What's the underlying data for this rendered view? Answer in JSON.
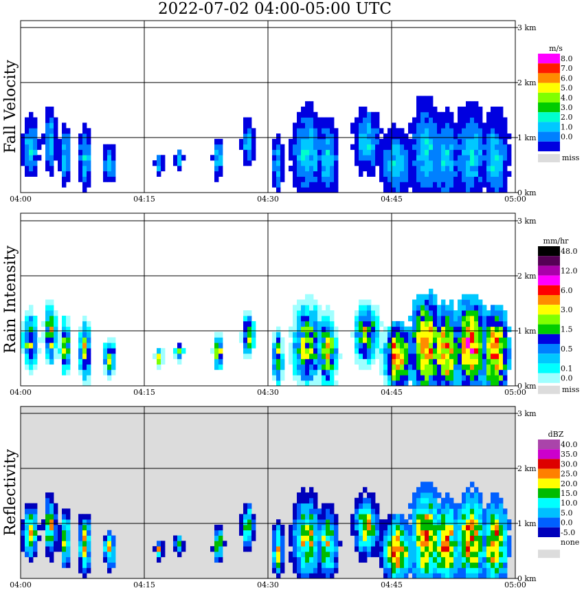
{
  "title": "2022-07-02   04:00-05:00 UTC",
  "time_ticks": [
    "04:00",
    "04:15",
    "04:30",
    "04:45",
    "05:00"
  ],
  "height_ticks": [
    "0 km",
    "1 km",
    "2 km",
    "3 km"
  ],
  "colors": {
    "miss": "#dcdcdc",
    "grid": "#000000"
  },
  "chart_data": [
    {
      "type": "heatmap",
      "title": "",
      "ylabel": "Fall Velocity",
      "xlabel": "",
      "x": [
        "04:00",
        "04:15",
        "04:30",
        "04:45",
        "05:00"
      ],
      "ylim_km": [
        0,
        3.0
      ],
      "unit": "m/s",
      "colorbar": [
        {
          "label": "8.0",
          "color": "#ff00ff"
        },
        {
          "label": "7.0",
          "color": "#ff1a00"
        },
        {
          "label": "6.0",
          "color": "#ff8c00"
        },
        {
          "label": "5.0",
          "color": "#ffff00"
        },
        {
          "label": "4.0",
          "color": "#80ff00"
        },
        {
          "label": "3.0",
          "color": "#00cc00"
        },
        {
          "label": "2.0",
          "color": "#00ffcc"
        },
        {
          "label": "1.0",
          "color": "#00c8ff"
        },
        {
          "label": "0.0",
          "color": "#0080ff"
        },
        {
          "label": "",
          "color": "#0000e0"
        }
      ],
      "miss_label": "miss",
      "background": "#ffffff"
    },
    {
      "type": "heatmap",
      "title": "",
      "ylabel": "Rain Intensity",
      "xlabel": "",
      "x": [
        "04:00",
        "04:15",
        "04:30",
        "04:45",
        "05:00"
      ],
      "ylim_km": [
        0,
        3.0
      ],
      "unit": "mm/hr",
      "colorbar": [
        {
          "label": "48.0",
          "color": "#000000"
        },
        {
          "label": "",
          "color": "#550055"
        },
        {
          "label": "12.0",
          "color": "#aa00aa"
        },
        {
          "label": "",
          "color": "#ff00ff"
        },
        {
          "label": "6.0",
          "color": "#ff0000"
        },
        {
          "label": "",
          "color": "#ff8c00"
        },
        {
          "label": "3.0",
          "color": "#ffff00"
        },
        {
          "label": "",
          "color": "#80ff00"
        },
        {
          "label": "1.5",
          "color": "#00cc00"
        },
        {
          "label": "",
          "color": "#0000e0"
        },
        {
          "label": "0.5",
          "color": "#0080ff"
        },
        {
          "label": "",
          "color": "#00c8ff"
        },
        {
          "label": "0.1",
          "color": "#00ffff"
        },
        {
          "label": "0.0",
          "color": "#a0ffff"
        }
      ],
      "miss_label": "miss",
      "background": "#ffffff"
    },
    {
      "type": "heatmap",
      "title": "",
      "ylabel": "Reflectivity",
      "xlabel": "",
      "x": [
        "04:00",
        "04:15",
        "04:30",
        "04:45",
        "05:00"
      ],
      "ylim_km": [
        0,
        3.0
      ],
      "unit": "dBZ",
      "colorbar": [
        {
          "label": "40.0",
          "color": "#aa44aa"
        },
        {
          "label": "35.0",
          "color": "#cc00cc"
        },
        {
          "label": "30.0",
          "color": "#dd0000"
        },
        {
          "label": "25.0",
          "color": "#ff8000"
        },
        {
          "label": "20.0",
          "color": "#ffff00"
        },
        {
          "label": "15.0",
          "color": "#00bb00"
        },
        {
          "label": "10.0",
          "color": "#00ffff"
        },
        {
          "label": "5.0",
          "color": "#00c0ff"
        },
        {
          "label": "0.0",
          "color": "#0060ff"
        },
        {
          "label": "-5.0",
          "color": "#0000bb"
        },
        {
          "label": "none",
          "color": "#ffffff"
        }
      ],
      "miss_label": "",
      "background": "#dcdcdc"
    }
  ]
}
